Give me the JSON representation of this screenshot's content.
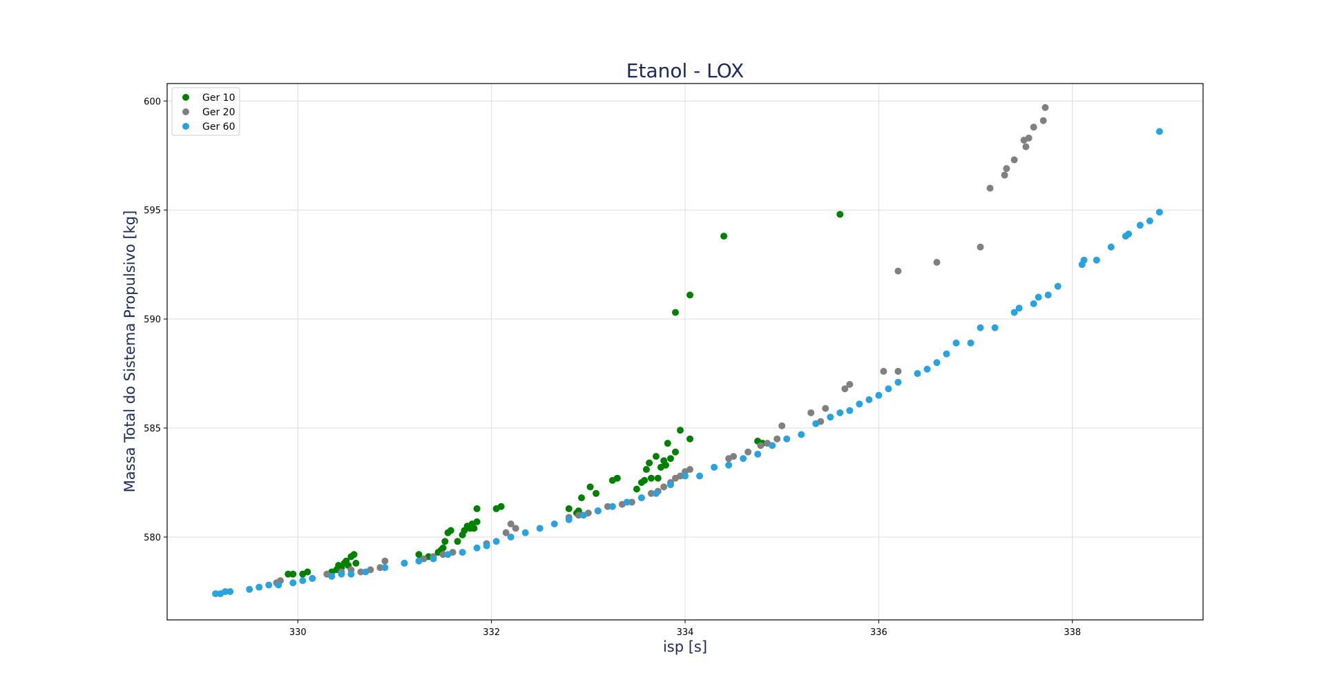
{
  "chart_data": {
    "type": "scatter",
    "title": "Etanol - LOX",
    "xlabel": "isp [s]",
    "ylabel": "Massa Total do Sistema Propulsivo [kg]",
    "xlim": [
      328.65,
      339.35
    ],
    "ylim": [
      576.2,
      600.8
    ],
    "xticks": [
      330,
      332,
      334,
      336,
      338
    ],
    "yticks": [
      580,
      585,
      590,
      595,
      600
    ],
    "grid": true,
    "legend_position": "top-left",
    "series": [
      {
        "name": "Ger 10",
        "color": "#008000",
        "points": [
          [
            329.8,
            577.9
          ],
          [
            329.9,
            578.3
          ],
          [
            329.95,
            578.3
          ],
          [
            330.05,
            578.3
          ],
          [
            330.1,
            578.4
          ],
          [
            330.35,
            578.4
          ],
          [
            330.4,
            578.5
          ],
          [
            330.42,
            578.7
          ],
          [
            330.45,
            578.6
          ],
          [
            330.48,
            578.8
          ],
          [
            330.5,
            578.9
          ],
          [
            330.52,
            578.7
          ],
          [
            330.55,
            579.1
          ],
          [
            330.58,
            579.2
          ],
          [
            330.6,
            578.8
          ],
          [
            331.25,
            579.2
          ],
          [
            331.35,
            579.1
          ],
          [
            331.45,
            579.3
          ],
          [
            331.48,
            579.4
          ],
          [
            331.5,
            579.5
          ],
          [
            331.52,
            579.8
          ],
          [
            331.55,
            580.2
          ],
          [
            331.58,
            580.3
          ],
          [
            331.65,
            579.8
          ],
          [
            331.7,
            580.1
          ],
          [
            331.72,
            580.3
          ],
          [
            331.75,
            580.5
          ],
          [
            331.78,
            580.4
          ],
          [
            331.8,
            580.6
          ],
          [
            331.82,
            580.4
          ],
          [
            331.85,
            580.7
          ],
          [
            331.85,
            581.3
          ],
          [
            332.05,
            581.3
          ],
          [
            332.1,
            581.4
          ],
          [
            332.8,
            581.3
          ],
          [
            332.88,
            581.1
          ],
          [
            332.9,
            581.2
          ],
          [
            332.93,
            581.8
          ],
          [
            333.02,
            582.3
          ],
          [
            333.08,
            582.0
          ],
          [
            333.25,
            582.6
          ],
          [
            333.3,
            582.7
          ],
          [
            333.5,
            582.2
          ],
          [
            333.55,
            582.5
          ],
          [
            333.58,
            582.6
          ],
          [
            333.6,
            583.1
          ],
          [
            333.63,
            583.4
          ],
          [
            333.65,
            582.7
          ],
          [
            333.7,
            583.7
          ],
          [
            333.72,
            582.7
          ],
          [
            333.75,
            583.2
          ],
          [
            333.78,
            583.5
          ],
          [
            333.8,
            583.3
          ],
          [
            333.82,
            584.3
          ],
          [
            333.85,
            583.6
          ],
          [
            333.9,
            583.9
          ],
          [
            333.95,
            584.9
          ],
          [
            334.05,
            584.5
          ],
          [
            333.9,
            590.3
          ],
          [
            334.05,
            591.1
          ],
          [
            334.4,
            593.8
          ],
          [
            334.75,
            584.4
          ],
          [
            334.8,
            584.3
          ],
          [
            335.6,
            594.8
          ]
        ]
      },
      {
        "name": "Ger 20",
        "color": "#808080",
        "points": [
          [
            329.78,
            577.9
          ],
          [
            329.82,
            578.0
          ],
          [
            330.15,
            578.1
          ],
          [
            330.3,
            578.3
          ],
          [
            330.45,
            578.4
          ],
          [
            330.55,
            578.5
          ],
          [
            330.65,
            578.4
          ],
          [
            330.75,
            578.5
          ],
          [
            330.85,
            578.6
          ],
          [
            330.9,
            578.9
          ],
          [
            331.1,
            578.8
          ],
          [
            331.3,
            579.0
          ],
          [
            331.4,
            579.1
          ],
          [
            331.5,
            579.2
          ],
          [
            331.6,
            579.3
          ],
          [
            331.95,
            579.7
          ],
          [
            332.15,
            580.2
          ],
          [
            332.2,
            580.6
          ],
          [
            332.25,
            580.4
          ],
          [
            332.8,
            580.9
          ],
          [
            332.9,
            581.0
          ],
          [
            333.0,
            581.1
          ],
          [
            333.1,
            581.2
          ],
          [
            333.2,
            581.4
          ],
          [
            333.35,
            581.5
          ],
          [
            333.45,
            581.6
          ],
          [
            333.55,
            581.8
          ],
          [
            333.65,
            582.0
          ],
          [
            333.72,
            582.1
          ],
          [
            333.78,
            582.3
          ],
          [
            333.85,
            582.5
          ],
          [
            333.9,
            582.7
          ],
          [
            333.95,
            582.8
          ],
          [
            334.0,
            583.0
          ],
          [
            334.05,
            583.1
          ],
          [
            334.45,
            583.6
          ],
          [
            334.5,
            583.7
          ],
          [
            334.65,
            583.9
          ],
          [
            334.78,
            584.2
          ],
          [
            334.85,
            584.3
          ],
          [
            334.95,
            584.5
          ],
          [
            335.0,
            585.1
          ],
          [
            335.3,
            585.7
          ],
          [
            335.4,
            585.3
          ],
          [
            335.45,
            585.9
          ],
          [
            335.65,
            586.8
          ],
          [
            335.7,
            587.0
          ],
          [
            336.05,
            587.6
          ],
          [
            336.2,
            587.6
          ],
          [
            336.2,
            592.2
          ],
          [
            336.6,
            592.6
          ],
          [
            337.05,
            593.3
          ],
          [
            337.15,
            596.0
          ],
          [
            337.3,
            596.6
          ],
          [
            337.32,
            596.9
          ],
          [
            337.4,
            597.3
          ],
          [
            337.5,
            598.2
          ],
          [
            337.52,
            597.9
          ],
          [
            337.55,
            598.3
          ],
          [
            337.6,
            598.8
          ],
          [
            337.7,
            599.1
          ],
          [
            337.72,
            599.7
          ]
        ]
      },
      {
        "name": "Ger 60",
        "color": "#29a3dd",
        "points": [
          [
            329.15,
            577.4
          ],
          [
            329.2,
            577.4
          ],
          [
            329.25,
            577.5
          ],
          [
            329.3,
            577.5
          ],
          [
            329.5,
            577.6
          ],
          [
            329.6,
            577.7
          ],
          [
            329.7,
            577.8
          ],
          [
            329.8,
            577.8
          ],
          [
            329.95,
            577.9
          ],
          [
            330.05,
            578.0
          ],
          [
            330.15,
            578.1
          ],
          [
            330.35,
            578.2
          ],
          [
            330.45,
            578.3
          ],
          [
            330.55,
            578.3
          ],
          [
            330.7,
            578.4
          ],
          [
            330.9,
            578.6
          ],
          [
            331.1,
            578.8
          ],
          [
            331.25,
            578.9
          ],
          [
            331.4,
            579.0
          ],
          [
            331.55,
            579.2
          ],
          [
            331.7,
            579.3
          ],
          [
            331.85,
            579.5
          ],
          [
            331.95,
            579.6
          ],
          [
            332.05,
            579.8
          ],
          [
            332.2,
            580.0
          ],
          [
            332.35,
            580.2
          ],
          [
            332.5,
            580.4
          ],
          [
            332.65,
            580.6
          ],
          [
            332.8,
            580.8
          ],
          [
            332.95,
            581.0
          ],
          [
            333.1,
            581.2
          ],
          [
            333.25,
            581.4
          ],
          [
            333.4,
            581.6
          ],
          [
            333.55,
            581.8
          ],
          [
            333.7,
            582.0
          ],
          [
            333.85,
            582.4
          ],
          [
            334.0,
            582.8
          ],
          [
            334.15,
            582.8
          ],
          [
            334.3,
            583.2
          ],
          [
            334.45,
            583.3
          ],
          [
            334.6,
            583.6
          ],
          [
            334.75,
            583.8
          ],
          [
            334.9,
            584.2
          ],
          [
            335.05,
            584.5
          ],
          [
            335.2,
            584.7
          ],
          [
            335.35,
            585.2
          ],
          [
            335.5,
            585.5
          ],
          [
            335.6,
            585.7
          ],
          [
            335.7,
            585.8
          ],
          [
            335.8,
            586.1
          ],
          [
            335.9,
            586.3
          ],
          [
            336.0,
            586.5
          ],
          [
            336.1,
            586.8
          ],
          [
            336.2,
            587.1
          ],
          [
            336.4,
            587.5
          ],
          [
            336.5,
            587.7
          ],
          [
            336.6,
            588.0
          ],
          [
            336.7,
            588.4
          ],
          [
            336.8,
            588.9
          ],
          [
            336.95,
            588.9
          ],
          [
            337.05,
            589.6
          ],
          [
            337.2,
            589.6
          ],
          [
            337.4,
            590.3
          ],
          [
            337.45,
            590.5
          ],
          [
            337.6,
            590.7
          ],
          [
            337.65,
            591.0
          ],
          [
            337.75,
            591.1
          ],
          [
            337.85,
            591.5
          ],
          [
            338.1,
            592.5
          ],
          [
            338.12,
            592.7
          ],
          [
            338.25,
            592.7
          ],
          [
            338.4,
            593.3
          ],
          [
            338.55,
            593.8
          ],
          [
            338.58,
            593.9
          ],
          [
            338.7,
            594.3
          ],
          [
            338.8,
            594.5
          ],
          [
            338.9,
            594.9
          ],
          [
            338.9,
            598.6
          ]
        ]
      }
    ]
  }
}
